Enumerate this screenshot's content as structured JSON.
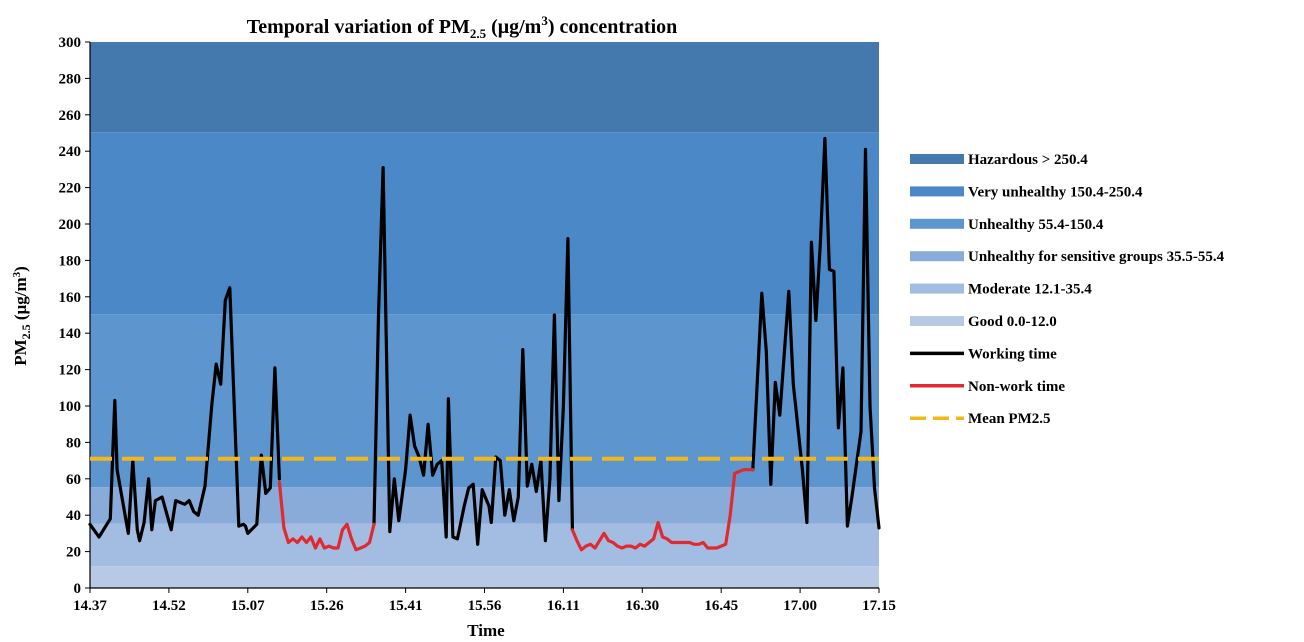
{
  "chart_data": {
    "type": "line",
    "title": {
      "pre": "Temporal variation of  PM",
      "sub": "2.5",
      "mid": " (μg/m",
      "sup": "3",
      "post": ") concentration"
    },
    "xlabel": "Time",
    "ylabel": {
      "pre": "PM",
      "sub": "2.5",
      "post": " (μg/m",
      "sup": "3",
      "end": ")"
    },
    "ylim": [
      0,
      300
    ],
    "yticks": [
      0,
      20,
      40,
      60,
      80,
      100,
      120,
      140,
      160,
      180,
      200,
      220,
      240,
      260,
      280,
      300
    ],
    "xticks": [
      "14.37",
      "14.52",
      "15.07",
      "15.26",
      "15.41",
      "15.56",
      "16.11",
      "16.30",
      "16.45",
      "17.00",
      "17.15"
    ],
    "bands": [
      {
        "name": "Good 0.0-12.0",
        "from": 0,
        "to": 12.0,
        "color": "#b7c9e4"
      },
      {
        "name": "Moderate 12.1-35.4",
        "from": 12.0,
        "to": 35.4,
        "color": "#a3bde2"
      },
      {
        "name": "Unhealthy for sensitive groups 35.5-55.4",
        "from": 35.4,
        "to": 55.4,
        "color": "#88abd9"
      },
      {
        "name": "Unhealthy 55.4-150.4",
        "from": 55.4,
        "to": 150.4,
        "color": "#5d95cf"
      },
      {
        "name": "Very unhealthy 150.4-250.4",
        "from": 150.4,
        "to": 250.4,
        "color": "#4b88c7"
      },
      {
        "name": "Hazardous > 250.4",
        "from": 250.4,
        "to": 300,
        "color": "#4479ad"
      }
    ],
    "series": [
      {
        "name": "Working time",
        "color": "#000000",
        "segments": [
          [
            [
              0,
              35
            ],
            [
              2,
              28
            ],
            [
              4.5,
              38
            ],
            [
              5.5,
              103
            ],
            [
              6,
              65
            ],
            [
              8.5,
              30
            ],
            [
              9.5,
              70
            ],
            [
              10.5,
              32
            ],
            [
              11,
              26
            ],
            [
              12,
              36
            ],
            [
              13,
              60
            ],
            [
              13.7,
              32
            ],
            [
              14.5,
              48
            ],
            [
              16,
              50
            ],
            [
              18,
              32
            ],
            [
              19,
              48
            ],
            [
              21,
              46
            ],
            [
              22,
              48
            ],
            [
              23,
              42
            ],
            [
              24,
              40
            ],
            [
              25.5,
              56
            ],
            [
              27,
              100
            ],
            [
              28,
              123
            ],
            [
              29,
              112
            ],
            [
              30,
              158
            ],
            [
              31,
              165
            ],
            [
              33,
              34
            ],
            [
              34,
              35
            ],
            [
              34.5,
              34
            ],
            [
              35,
              30
            ],
            [
              37,
              35
            ],
            [
              38,
              73
            ],
            [
              39,
              52
            ],
            [
              40,
              55
            ],
            [
              41,
              121
            ],
            [
              42,
              60
            ]
          ],
          [
            [
              63,
              35
            ],
            [
              64,
              150
            ],
            [
              65,
              231
            ],
            [
              66.5,
              31
            ],
            [
              67.5,
              60
            ],
            [
              68.5,
              37
            ],
            [
              70,
              65
            ],
            [
              71,
              95
            ],
            [
              72,
              78
            ],
            [
              73,
              72
            ],
            [
              74,
              62
            ],
            [
              75,
              90
            ],
            [
              76,
              62
            ],
            [
              77,
              68
            ],
            [
              78,
              70
            ],
            [
              79,
              28
            ],
            [
              79.5,
              104
            ],
            [
              80.5,
              28
            ],
            [
              81.5,
              27
            ],
            [
              83,
              45
            ],
            [
              84,
              55
            ],
            [
              85,
              57
            ],
            [
              86,
              24
            ],
            [
              87,
              54
            ],
            [
              88.5,
              45
            ],
            [
              89,
              36
            ],
            [
              90,
              72
            ],
            [
              91,
              70
            ],
            [
              92,
              40
            ],
            [
              93,
              54
            ],
            [
              94,
              37
            ],
            [
              95,
              50
            ],
            [
              96,
              131
            ],
            [
              97,
              56
            ],
            [
              98,
              68
            ],
            [
              99,
              53
            ],
            [
              100,
              70
            ],
            [
              101,
              26
            ],
            [
              102,
              60
            ],
            [
              103,
              150
            ],
            [
              104,
              48
            ],
            [
              105,
              100
            ],
            [
              106,
              192
            ],
            [
              107,
              32
            ]
          ],
          [
            [
              147,
              65
            ],
            [
              149,
              162
            ],
            [
              150,
              130
            ],
            [
              151,
              57
            ],
            [
              152,
              113
            ],
            [
              153,
              95
            ],
            [
              155,
              163
            ],
            [
              156,
              112
            ],
            [
              158,
              65
            ],
            [
              159,
              36
            ],
            [
              160,
              190
            ],
            [
              161,
              147
            ],
            [
              162,
              190
            ],
            [
              163,
              247
            ],
            [
              164,
              175
            ],
            [
              165,
              174
            ],
            [
              166,
              88
            ],
            [
              167,
              121
            ],
            [
              168,
              34
            ],
            [
              169,
              50
            ],
            [
              171,
              86
            ],
            [
              172,
              241
            ],
            [
              173,
              100
            ],
            [
              174,
              55
            ],
            [
              175,
              33
            ]
          ]
        ]
      },
      {
        "name": "Non-work time",
        "color": "#e02a30",
        "segments": [
          [
            [
              42,
              58
            ],
            [
              43,
              33
            ],
            [
              44,
              25
            ],
            [
              45,
              27
            ],
            [
              46,
              25
            ],
            [
              47,
              28
            ],
            [
              48,
              25
            ],
            [
              49,
              28
            ],
            [
              50,
              22
            ],
            [
              51,
              27
            ],
            [
              52,
              22
            ],
            [
              53,
              23
            ],
            [
              54,
              22
            ],
            [
              55,
              22
            ],
            [
              56,
              32
            ],
            [
              57,
              35
            ],
            [
              58,
              27
            ],
            [
              59,
              21
            ],
            [
              60,
              22
            ],
            [
              61,
              23
            ],
            [
              62,
              25
            ],
            [
              63,
              35
            ]
          ],
          [
            [
              107,
              32
            ],
            [
              108,
              26
            ],
            [
              109,
              21
            ],
            [
              110,
              23
            ],
            [
              111,
              24
            ],
            [
              112,
              22
            ],
            [
              113,
              26
            ],
            [
              114,
              30
            ],
            [
              115,
              26
            ],
            [
              116,
              25
            ],
            [
              117,
              23
            ],
            [
              118,
              22
            ],
            [
              119,
              23
            ],
            [
              120,
              23
            ],
            [
              121,
              22
            ],
            [
              122,
              24
            ],
            [
              123,
              23
            ],
            [
              124,
              25
            ],
            [
              125,
              27
            ],
            [
              126,
              36
            ],
            [
              127,
              28
            ],
            [
              128,
              27
            ],
            [
              129,
              25
            ],
            [
              130,
              25
            ],
            [
              131,
              25
            ],
            [
              132,
              25
            ],
            [
              133,
              25
            ],
            [
              134,
              24
            ],
            [
              135,
              24
            ],
            [
              136,
              25
            ],
            [
              137,
              22
            ],
            [
              138,
              22
            ],
            [
              139,
              22
            ],
            [
              140,
              23
            ],
            [
              141,
              24
            ],
            [
              142,
              40
            ],
            [
              143,
              63
            ],
            [
              144,
              64
            ],
            [
              145,
              65
            ],
            [
              146,
              65
            ],
            [
              147,
              65
            ]
          ]
        ]
      },
      {
        "name": "Mean PM2.5",
        "color": "#f3b71a",
        "style": "dashed",
        "value": 71
      }
    ],
    "x_index_range": [
      0,
      175
    ],
    "grid": false,
    "legend_position": "right"
  }
}
